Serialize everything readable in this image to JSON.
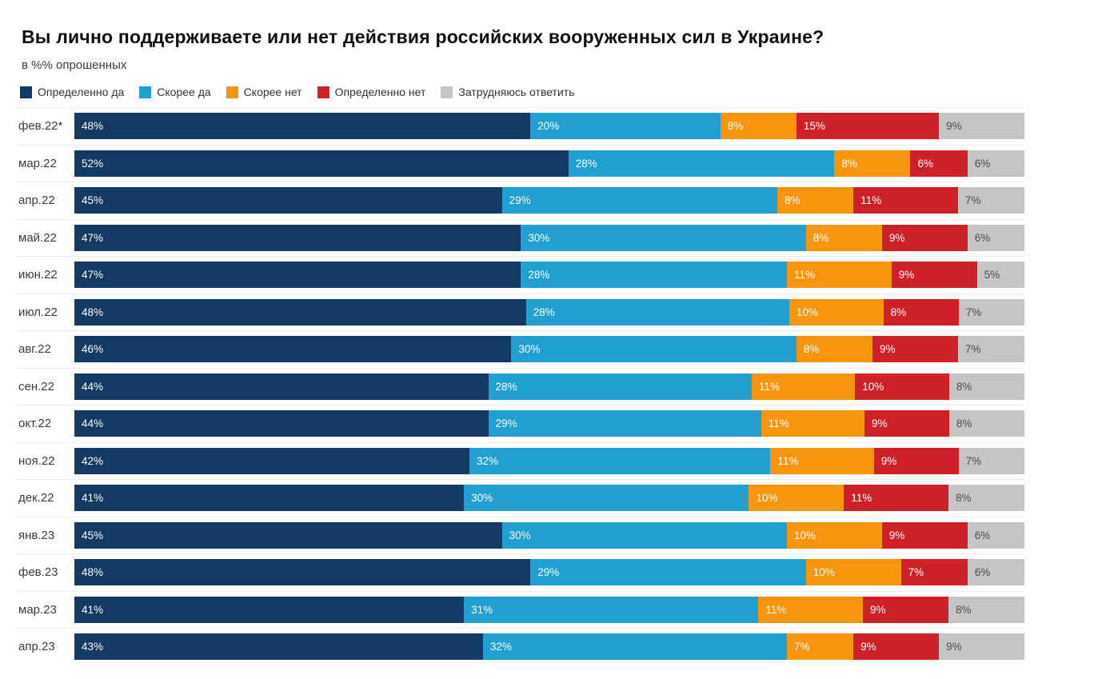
{
  "title": "Вы лично поддерживаете или нет действия российских вооруженных сил в Украине?",
  "subtitle": "в %% опрошенных",
  "colors": {
    "definitely_yes": "#123a63",
    "rather_yes": "#219fd1",
    "rather_no": "#f8950f",
    "definitely_no": "#ce2127",
    "hard_to_say": "#c5c5c5",
    "label_on_color": "#ffffff",
    "label_on_gray": "#4c4c4c",
    "row_separator": "#ececec"
  },
  "legend": [
    {
      "label": "Определенно да",
      "color": "#123a63"
    },
    {
      "label": "Скорее да",
      "color": "#219fd1"
    },
    {
      "label": "Скорее нет",
      "color": "#f8950f"
    },
    {
      "label": "Определенно нет",
      "color": "#ce2127"
    },
    {
      "label": "Затрудняюсь ответить",
      "color": "#c5c5c5"
    }
  ],
  "chart_data": {
    "type": "bar",
    "orientation": "horizontal",
    "stacked": true,
    "value_suffix": "%",
    "categories": [
      "фев.22*",
      "мар.22",
      "апр.22",
      "май.22",
      "июн.22",
      "июл.22",
      "авг.22",
      "сен.22",
      "окт.22",
      "ноя.22",
      "дек.22",
      "янв.23",
      "фев.23",
      "мар.23",
      "апр.23"
    ],
    "series": [
      {
        "name": "Определенно да",
        "color": "#123a63",
        "label_color": "#ffffff",
        "values": [
          48,
          52,
          45,
          47,
          47,
          48,
          46,
          44,
          44,
          42,
          41,
          45,
          48,
          41,
          43
        ]
      },
      {
        "name": "Скорее да",
        "color": "#219fd1",
        "label_color": "#ffffff",
        "values": [
          20,
          28,
          29,
          30,
          28,
          28,
          30,
          28,
          29,
          32,
          30,
          30,
          29,
          31,
          32
        ]
      },
      {
        "name": "Скорее нет",
        "color": "#f8950f",
        "label_color": "#ffffff",
        "values": [
          8,
          8,
          8,
          8,
          11,
          10,
          8,
          11,
          11,
          11,
          10,
          10,
          10,
          11,
          7
        ]
      },
      {
        "name": "Определенно нет",
        "color": "#ce2127",
        "label_color": "#ffffff",
        "values": [
          15,
          6,
          11,
          9,
          9,
          8,
          9,
          10,
          9,
          9,
          11,
          9,
          7,
          9,
          9
        ]
      },
      {
        "name": "Затрудняюсь ответить",
        "color": "#c5c5c5",
        "label_color": "#4c4c4c",
        "values": [
          9,
          6,
          7,
          6,
          5,
          7,
          7,
          8,
          8,
          7,
          8,
          6,
          6,
          8,
          9
        ]
      }
    ]
  }
}
